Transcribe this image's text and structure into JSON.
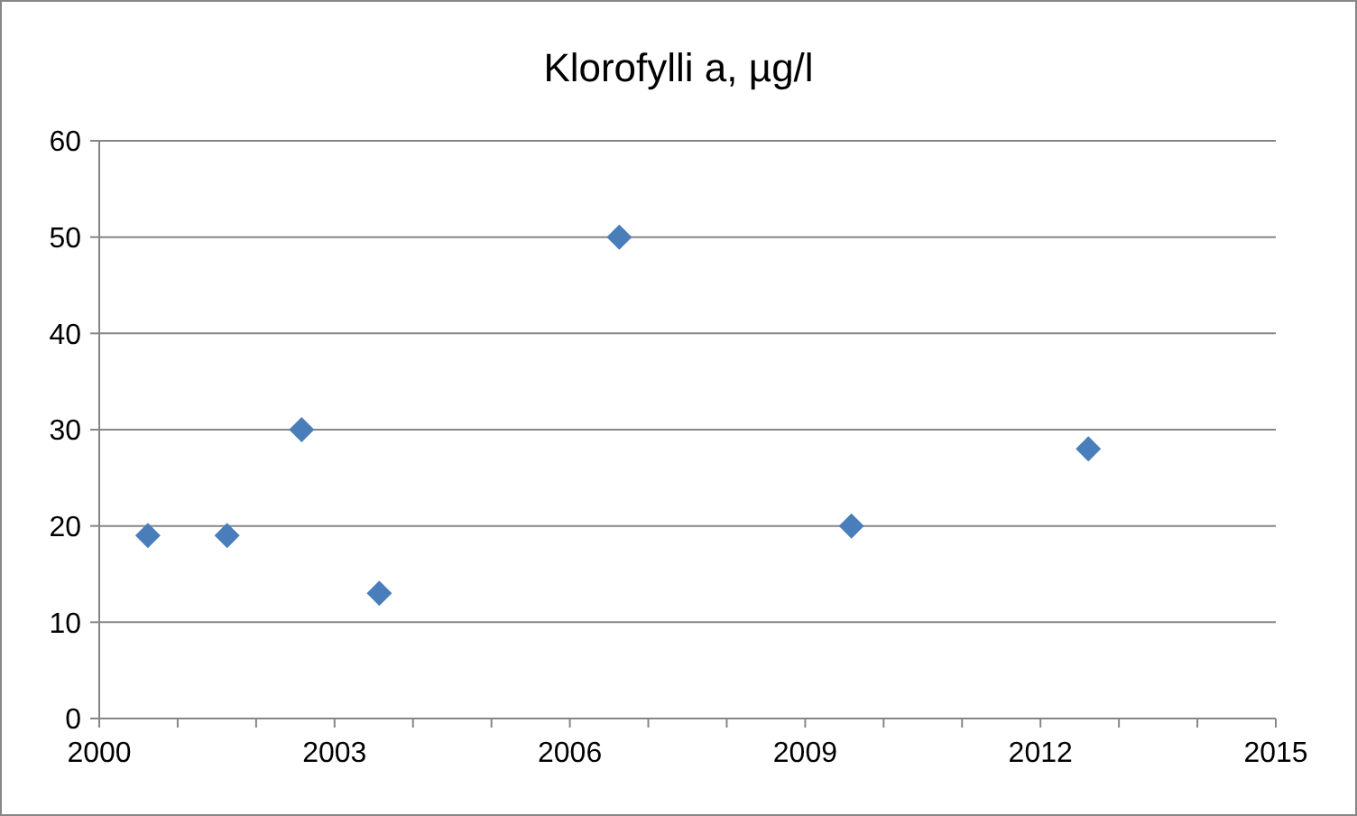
{
  "chart_data": {
    "type": "scatter",
    "title": "Klorofylli a, µg/l",
    "x": [
      2000.62,
      2001.63,
      2002.58,
      2003.57,
      2006.63,
      2009.59,
      2012.61
    ],
    "series": [
      {
        "color": "#4a7ebb",
        "values": [
          19,
          19,
          30,
          13,
          50,
          20,
          28
        ]
      }
    ],
    "xlim": [
      2000,
      2015
    ],
    "xticks": [
      2000,
      {
        "value": 2001,
        "label": null
      },
      {
        "value": 2002,
        "label": null
      },
      2003,
      {
        "value": 2004,
        "label": null
      },
      {
        "value": 2005,
        "label": null
      },
      2006,
      {
        "value": 2007,
        "label": null
      },
      {
        "value": 2008,
        "label": null
      },
      2009,
      {
        "value": 2010,
        "label": null
      },
      {
        "value": 2011,
        "label": null
      },
      2012,
      {
        "value": 2013,
        "label": null
      },
      {
        "value": 2014,
        "label": null
      },
      2015
    ],
    "ylim": [
      0,
      60
    ],
    "yticks": [
      0,
      10,
      20,
      30,
      40,
      50,
      60
    ],
    "grid": "y",
    "marker": "diamond"
  }
}
